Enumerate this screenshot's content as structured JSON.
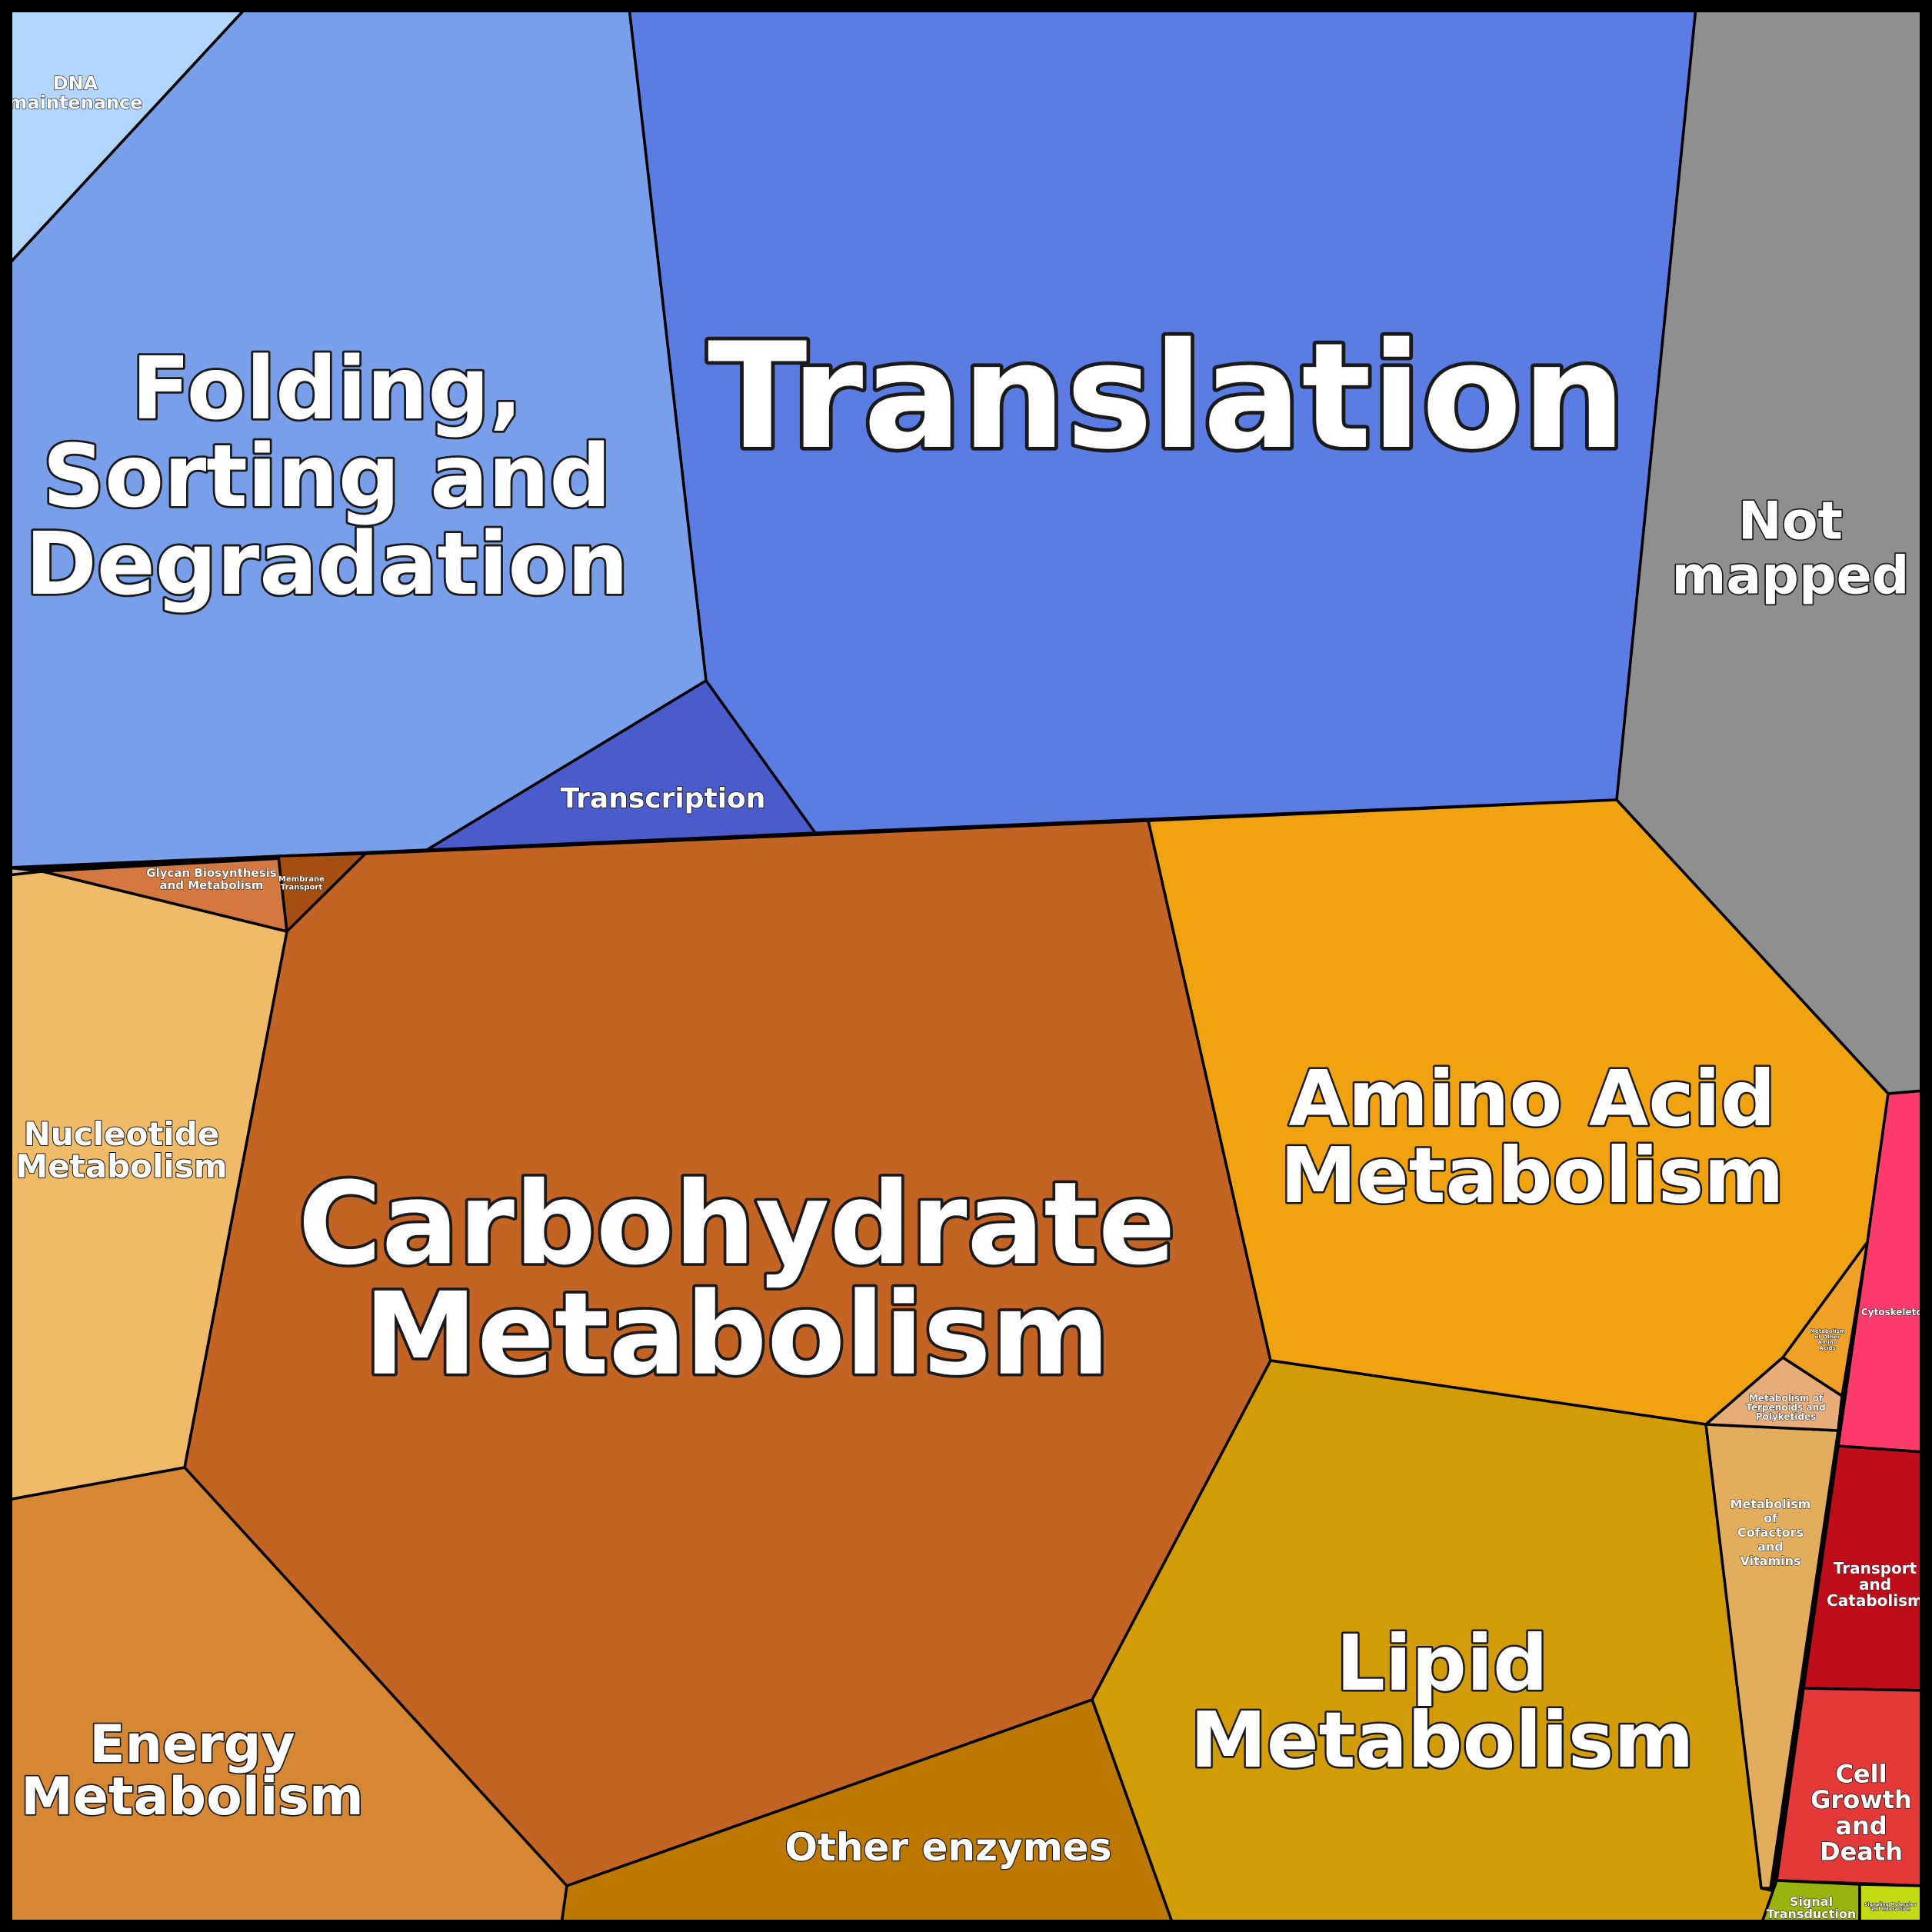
{
  "chart_data": {
    "type": "voronoi-treemap",
    "title": "",
    "cells": [
      {
        "id": "translation",
        "label": "Translation",
        "color": "#5B7DE3"
      },
      {
        "id": "folding",
        "label": "Folding, Sorting and Degradation",
        "color": "#799FEA"
      },
      {
        "id": "dna-maintenance",
        "label": "DNA maintenance",
        "color": "#B1D5FB"
      },
      {
        "id": "transcription",
        "label": "Transcription",
        "color": "#4A5BCB"
      },
      {
        "id": "not-mapped",
        "label": "Not mapped",
        "color": "#908F8F"
      },
      {
        "id": "carbohydrate",
        "label": "Carbohydrate Metabolism",
        "color": "#C46424"
      },
      {
        "id": "amino-acid",
        "label": "Amino Acid Metabolism",
        "color": "#F0A211"
      },
      {
        "id": "lipid",
        "label": "Lipid Metabolism",
        "color": "#D29C08"
      },
      {
        "id": "energy",
        "label": "Energy Metabolism",
        "color": "#D68734"
      },
      {
        "id": "nucleotide",
        "label": "Nucleotide Metabolism",
        "color": "#EFBB69"
      },
      {
        "id": "other-enzymes",
        "label": "Other enzymes",
        "color": "#BD7801"
      },
      {
        "id": "glycan",
        "label": "Glycan Biosynthesis and Metabolism",
        "color": "#D27840"
      },
      {
        "id": "membrane-transport",
        "label": "Membrane Transport",
        "color": "#A44E11"
      },
      {
        "id": "tiny-corner",
        "label": "",
        "color": "#C9B09A"
      },
      {
        "id": "cofactors",
        "label": "Metabolism of Cofactors and Vitamins",
        "color": "#E2AD5D"
      },
      {
        "id": "terpenoids",
        "label": "Metabolism of Terpenoids and Polyketides",
        "color": "#E8AC78"
      },
      {
        "id": "other-amino",
        "label": "Metabolism of Other Amino Acids",
        "color": "#EFA026"
      },
      {
        "id": "cytoskeleton",
        "label": "Cytoskeleton",
        "color": "#FD3C6C"
      },
      {
        "id": "transport-catabolism",
        "label": "Transport and Catabolism",
        "color": "#C00D1C"
      },
      {
        "id": "cell-growth",
        "label": "Cell Growth and Death",
        "color": "#E43939"
      },
      {
        "id": "signal-transduction",
        "label": "Signal Transduction",
        "color": "#9AB20D"
      },
      {
        "id": "signaling-molecules",
        "label": "Signaling Molecules and Interaction",
        "color": "#C2DA10"
      }
    ]
  }
}
